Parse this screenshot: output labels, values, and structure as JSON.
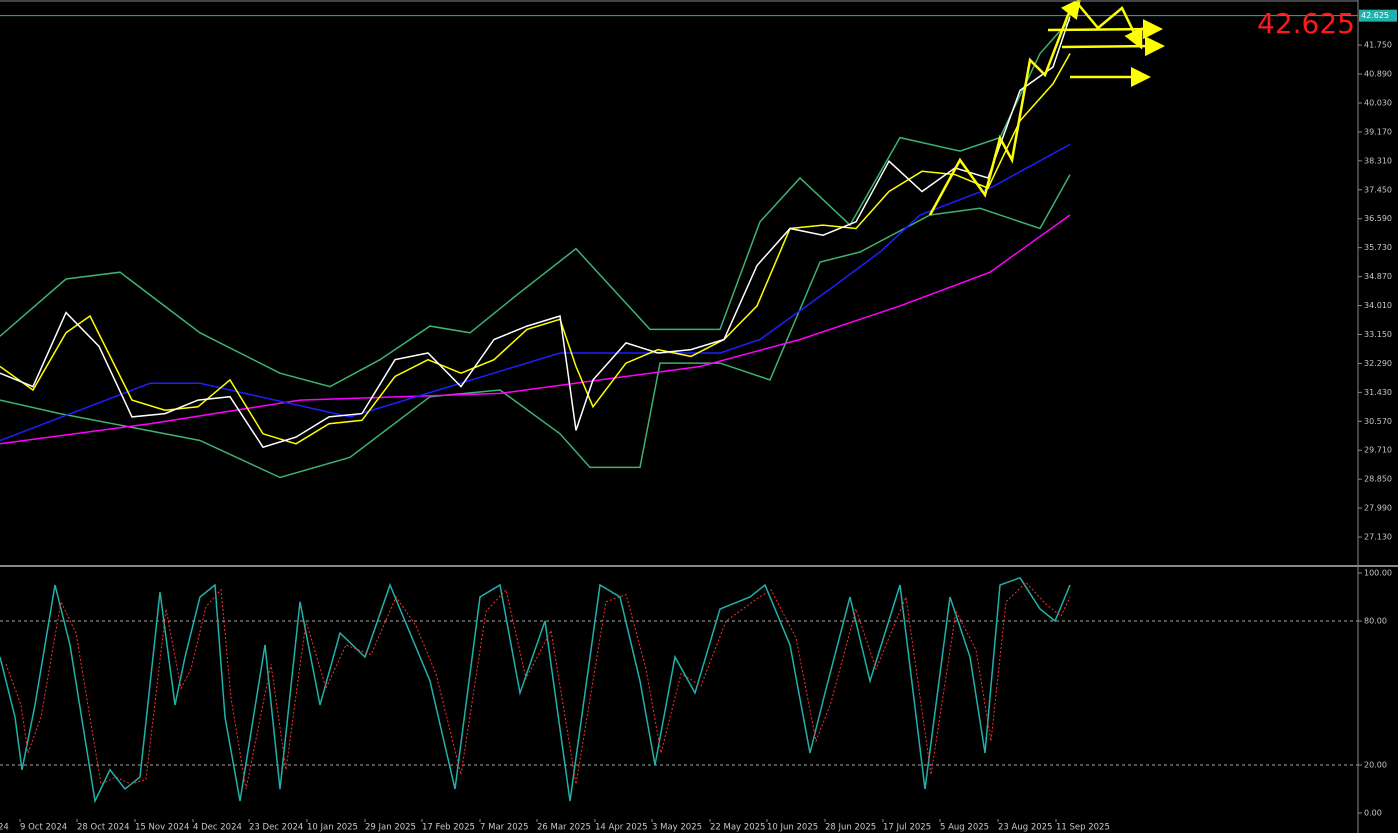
{
  "chart_data": [
    {
      "type": "line",
      "current_price": 42.625,
      "xlim": [
        0,
        1358
      ],
      "ylim": [
        26.27,
        43.09
      ],
      "xticks": [
        {
          "value": -2,
          "label": "24"
        },
        {
          "value": 20,
          "label": "9 Oct 2024"
        },
        {
          "value": 77,
          "label": "28 Oct 2024"
        },
        {
          "value": 135,
          "label": "15 Nov 2024"
        },
        {
          "value": 193,
          "label": "4 Dec 2024"
        },
        {
          "value": 249,
          "label": "23 Dec 2024"
        },
        {
          "value": 307,
          "label": "10 Jan 2025"
        },
        {
          "value": 365,
          "label": "29 Jan 2025"
        },
        {
          "value": 422,
          "label": "17 Feb 2025"
        },
        {
          "value": 480,
          "label": "7 Mar 2025"
        },
        {
          "value": 537,
          "label": "26 Mar 2025"
        },
        {
          "value": 595,
          "label": "14 Apr 2025"
        },
        {
          "value": 652,
          "label": "3 May 2025"
        },
        {
          "value": 710,
          "label": "22 May 2025"
        },
        {
          "value": 767,
          "label": "10 Jun 2025"
        },
        {
          "value": 825,
          "label": "28 Jun 2025"
        },
        {
          "value": 883,
          "label": "17 Jul 2025"
        },
        {
          "value": 940,
          "label": "5 Aug 2025"
        },
        {
          "value": 998,
          "label": "23 Aug 2025"
        },
        {
          "value": 1056,
          "label": "11 Sep 2025"
        }
      ],
      "yticks": [
        {
          "value": 41.75,
          "label": "41.750"
        },
        {
          "value": 40.89,
          "label": "40.890"
        },
        {
          "value": 40.03,
          "label": "40.030"
        },
        {
          "value": 39.17,
          "label": "39.170"
        },
        {
          "value": 38.31,
          "label": "38.310"
        },
        {
          "value": 37.45,
          "label": "37.450"
        },
        {
          "value": 36.59,
          "label": "36.590"
        },
        {
          "value": 35.73,
          "label": "35.730"
        },
        {
          "value": 34.87,
          "label": "34.870"
        },
        {
          "value": 34.01,
          "label": "34.010"
        },
        {
          "value": 33.15,
          "label": "33.150"
        },
        {
          "value": 32.29,
          "label": "32.290"
        },
        {
          "value": 31.43,
          "label": "31.430"
        },
        {
          "value": 30.57,
          "label": "30.570"
        },
        {
          "value": 29.71,
          "label": "29.710"
        },
        {
          "value": 28.85,
          "label": "28.850"
        },
        {
          "value": 27.99,
          "label": "27.990"
        },
        {
          "value": 27.13,
          "label": "27.130"
        }
      ],
      "series": [
        {
          "color": "#3cb371",
          "x": [
            0,
            66,
            120,
            200,
            280,
            330,
            380,
            430,
            470,
            520,
            576,
            650,
            720,
            760,
            800,
            850,
            900,
            960,
            1000,
            1040,
            1070
          ],
          "values": [
            33.1,
            34.8,
            35.0,
            33.2,
            32.0,
            31.6,
            32.4,
            33.4,
            33.2,
            34.4,
            35.7,
            33.3,
            33.3,
            36.5,
            37.8,
            36.4,
            39.0,
            38.6,
            39.0,
            41.5,
            42.5
          ]
        },
        {
          "color": "#3cb371",
          "x": [
            0,
            60,
            130,
            200,
            280,
            350,
            430,
            500,
            560,
            590,
            640,
            660,
            720,
            770,
            820,
            860,
            930,
            980,
            1040,
            1070
          ],
          "values": [
            31.2,
            30.8,
            30.4,
            30.0,
            28.9,
            29.5,
            31.3,
            31.5,
            30.2,
            29.2,
            29.2,
            32.3,
            32.3,
            31.8,
            35.3,
            35.6,
            36.7,
            36.9,
            36.3,
            37.9
          ]
        },
        {
          "color": "#ff00ff",
          "x": [
            0,
            150,
            300,
            500,
            600,
            700,
            800,
            900,
            990,
            1070
          ],
          "values": [
            29.9,
            30.5,
            31.2,
            31.4,
            31.8,
            32.2,
            33.0,
            34.0,
            35.0,
            36.7
          ]
        },
        {
          "color": "#1e1eff",
          "x": [
            0,
            150,
            200,
            350,
            560,
            720,
            760,
            830,
            880,
            920,
            990,
            1070
          ],
          "values": [
            30.0,
            31.7,
            31.7,
            30.7,
            32.6,
            32.6,
            33.0,
            34.5,
            35.6,
            36.7,
            37.5,
            38.8
          ]
        },
        {
          "color": "#ffff00",
          "x": [
            0,
            33,
            66,
            90,
            132,
            165,
            198,
            230,
            263,
            296,
            329,
            362,
            395,
            428,
            461,
            494,
            527,
            560,
            576,
            593,
            626,
            658,
            691,
            724,
            757,
            790,
            823,
            856,
            889,
            922,
            955,
            988,
            1020,
            1053,
            1070
          ],
          "values": [
            32.2,
            31.5,
            33.2,
            33.7,
            31.2,
            30.9,
            31.0,
            31.8,
            30.2,
            29.9,
            30.5,
            30.6,
            31.9,
            32.4,
            32.0,
            32.4,
            33.3,
            33.6,
            32.2,
            31.0,
            32.3,
            32.7,
            32.5,
            33.0,
            34.0,
            36.3,
            36.4,
            36.3,
            37.4,
            38.0,
            37.9,
            37.5,
            39.5,
            40.6,
            41.5
          ]
        },
        {
          "color": "#ffffff",
          "x": [
            0,
            33,
            66,
            99,
            132,
            165,
            198,
            230,
            263,
            296,
            329,
            362,
            395,
            428,
            461,
            494,
            527,
            560,
            576,
            593,
            626,
            658,
            691,
            724,
            757,
            790,
            823,
            856,
            889,
            922,
            955,
            988,
            1020,
            1053,
            1070
          ],
          "values": [
            32.0,
            31.6,
            33.8,
            32.8,
            30.7,
            30.8,
            31.2,
            31.3,
            29.8,
            30.1,
            30.7,
            30.8,
            32.4,
            32.6,
            31.6,
            33.0,
            33.4,
            33.7,
            30.3,
            31.8,
            32.9,
            32.6,
            32.7,
            33.0,
            35.2,
            36.3,
            36.1,
            36.5,
            38.3,
            37.4,
            38.1,
            37.8,
            40.4,
            41.1,
            42.6
          ]
        }
      ]
    },
    {
      "type": "line",
      "xlim": [
        0,
        1358
      ],
      "ylim": [
        -8.33,
        102.5
      ],
      "yticks": [
        {
          "value": 100,
          "label": "100.00"
        },
        {
          "value": 80,
          "label": "80.00"
        },
        {
          "value": 20,
          "label": "20.00"
        },
        {
          "value": 0,
          "label": "0.00"
        }
      ],
      "levels": [
        80,
        20
      ],
      "series": [
        {
          "color": "#20b2aa",
          "x": [
            0,
            15,
            22,
            35,
            55,
            70,
            95,
            110,
            125,
            140,
            160,
            175,
            185,
            200,
            215,
            225,
            240,
            265,
            280,
            300,
            320,
            340,
            365,
            390,
            410,
            430,
            455,
            480,
            500,
            520,
            545,
            570,
            600,
            620,
            640,
            655,
            675,
            695,
            720,
            750,
            765,
            790,
            810,
            825,
            850,
            870,
            900,
            925,
            950,
            970,
            985,
            1000,
            1020,
            1040,
            1055,
            1070
          ],
          "values": [
            65,
            40,
            18,
            45,
            95,
            70,
            5,
            18,
            10,
            15,
            92,
            45,
            65,
            90,
            95,
            40,
            5,
            70,
            10,
            88,
            45,
            75,
            65,
            95,
            75,
            55,
            10,
            90,
            95,
            50,
            80,
            5,
            95,
            90,
            55,
            20,
            65,
            50,
            85,
            90,
            95,
            70,
            25,
            50,
            90,
            55,
            95,
            10,
            90,
            65,
            25,
            95,
            98,
            85,
            80,
            95
          ]
        },
        {
          "color": "#ff3030",
          "dash": true,
          "x": [
            6,
            21,
            28,
            41,
            61,
            76,
            101,
            116,
            131,
            146,
            166,
            181,
            191,
            206,
            221,
            231,
            246,
            271,
            286,
            306,
            326,
            346,
            371,
            396,
            416,
            436,
            461,
            486,
            506,
            526,
            551,
            576,
            606,
            626,
            646,
            661,
            681,
            701,
            726,
            756,
            771,
            796,
            816,
            831,
            856,
            876,
            906,
            931,
            956,
            976,
            991,
            1006,
            1026,
            1046,
            1061,
            1070
          ],
          "values": [
            62,
            45,
            25,
            40,
            88,
            75,
            12,
            15,
            12,
            14,
            85,
            52,
            60,
            86,
            93,
            48,
            10,
            62,
            18,
            80,
            52,
            70,
            66,
            90,
            78,
            58,
            16,
            84,
            93,
            56,
            76,
            12,
            88,
            91,
            60,
            25,
            58,
            53,
            80,
            89,
            93,
            73,
            30,
            46,
            85,
            60,
            90,
            16,
            84,
            68,
            30,
            88,
            96,
            87,
            82,
            90
          ]
        }
      ]
    }
  ]
}
